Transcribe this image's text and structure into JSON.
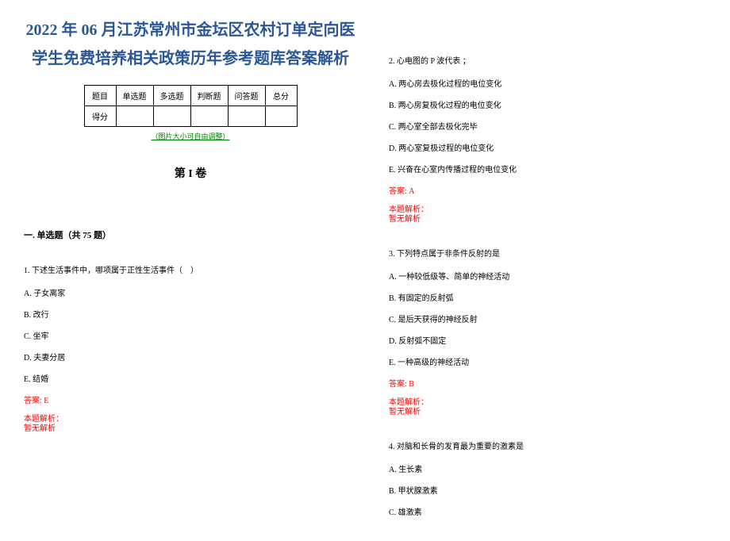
{
  "title": "2022 年 06 月江苏常州市金坛区农村订单定向医学生免费培养相关政策历年参考题库答案解析",
  "title_color": "#2b5797",
  "title_fontsize": 20,
  "score_table": {
    "headers": [
      "题目",
      "单选题",
      "多选题",
      "判断题",
      "问答题",
      "总分"
    ],
    "row_label": "得分"
  },
  "image_note": "（图片大小可自由调整）",
  "image_note_color": "#008000",
  "volume_title": "第 I 卷",
  "section_title": "一. 单选题（共 75 题）",
  "questions": [
    {
      "id": 1,
      "text": "1. 下述生活事件中，哪项属于正性生活事件（　）",
      "options": [
        "A. 子女离家",
        "B. 改行",
        "C. 坐牢",
        "D. 夫妻分居",
        "E. 结婚"
      ],
      "answer": "答案: E",
      "analysis_label": "本题解析：",
      "analysis_content": "暂无解析"
    },
    {
      "id": 2,
      "text": "2. 心电图的 P 波代表 ；",
      "options": [
        "A. 两心房去极化过程的电位变化",
        "B. 两心房复极化过程的电位变化",
        "C. 两心室全部去极化完毕",
        "D. 两心室复极过程的电位变化",
        "E. 兴奋在心室内传播过程的电位变化"
      ],
      "answer": "答案: A",
      "analysis_label": "本题解析：",
      "analysis_content": "暂无解析"
    },
    {
      "id": 3,
      "text": "3. 下列特点属于非条件反射的是",
      "options": [
        "A. 一种较低级等、简单的神经活动",
        "B. 有固定的反射弧",
        "C. 是后天获得的神经反射",
        "D. 反射弧不固定",
        "E. 一种高级的神经活动"
      ],
      "answer": "答案: B",
      "analysis_label": "本题解析：",
      "analysis_content": "暂无解析"
    },
    {
      "id": 4,
      "text": "4. 对脑和长骨的发育最为重要的激素是",
      "options": [
        "A. 生长素",
        "B. 甲状腺激素",
        "C. 雄激素"
      ],
      "answer": "",
      "analysis_label": "",
      "analysis_content": ""
    }
  ],
  "answer_color": "#ff0000",
  "body_fontsize": 10,
  "background_color": "#ffffff"
}
